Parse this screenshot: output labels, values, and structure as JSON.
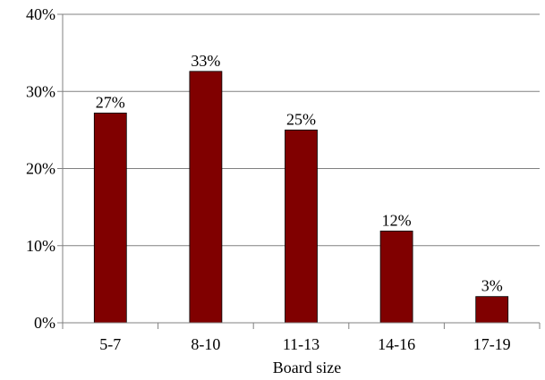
{
  "chart_data": {
    "type": "bar",
    "categories": [
      "5-7",
      "8-10",
      "11-13",
      "14-16",
      "17-19"
    ],
    "values": [
      27.2,
      32.6,
      25.0,
      11.9,
      3.4
    ],
    "data_labels": [
      "27%",
      "33%",
      "25%",
      "12%",
      "3%"
    ],
    "title": "",
    "xlabel": "Board size",
    "ylabel": "",
    "ylim": [
      0,
      40
    ],
    "yticks": [
      0,
      10,
      20,
      30,
      40
    ],
    "ytick_labels": [
      "0%",
      "10%",
      "20%",
      "30%",
      "40%"
    ],
    "grid": true,
    "legend": "none",
    "bar_color": "#800000"
  }
}
